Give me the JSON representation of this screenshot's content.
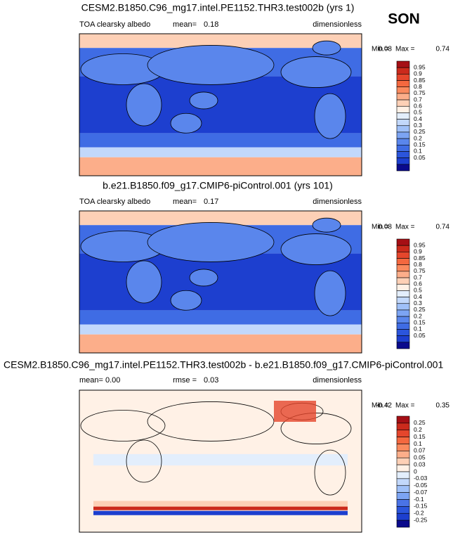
{
  "season": "SON",
  "panels": [
    {
      "title": "CESM2.B1850.C96_mg17.intel.PE1152.THR3.test002b (yrs 1)",
      "left": "TOA clearsky albedo",
      "stat_label": "mean=",
      "stat_value": "0.18",
      "units": "dimensionless",
      "min_label": "Min =",
      "min": "0.08",
      "max_label": "Max =",
      "max": "0.74",
      "colorbar": {
        "labels": [
          0.95,
          0.9,
          0.85,
          0.8,
          0.75,
          0.7,
          0.6,
          0.5,
          0.4,
          0.3,
          0.25,
          0.2,
          0.15,
          0.1,
          0.05
        ],
        "colors": [
          "#a50f15",
          "#cb2a1c",
          "#e5462c",
          "#f4683f",
          "#fa8a5e",
          "#fcae8a",
          "#fdd0b6",
          "#fff1e6",
          "#e3eefc",
          "#c2d8fb",
          "#9fc0f8",
          "#7ca4f3",
          "#5a86ec",
          "#3f6ce4",
          "#2b55dc",
          "#1d3fcf",
          "#0a0a8c"
        ]
      }
    },
    {
      "title": "b.e21.B1850.f09_g17.CMIP6-piControl.001 (yrs 101)",
      "left": "TOA clearsky albedo",
      "stat_label": "mean=",
      "stat_value": "0.17",
      "units": "dimensionless",
      "min_label": "Min =",
      "min": "0.08",
      "max_label": "Max =",
      "max": "0.74",
      "colorbar": {
        "labels": [
          0.95,
          0.9,
          0.85,
          0.8,
          0.75,
          0.7,
          0.6,
          0.5,
          0.4,
          0.3,
          0.25,
          0.2,
          0.15,
          0.1,
          0.05
        ],
        "colors": [
          "#a50f15",
          "#cb2a1c",
          "#e5462c",
          "#f4683f",
          "#fa8a5e",
          "#fcae8a",
          "#fdd0b6",
          "#fff1e6",
          "#e3eefc",
          "#c2d8fb",
          "#9fc0f8",
          "#7ca4f3",
          "#5a86ec",
          "#3f6ce4",
          "#2b55dc",
          "#1d3fcf",
          "#0a0a8c"
        ]
      }
    },
    {
      "title": "CESM2.B1850.C96_mg17.intel.PE1152.THR3.test002b - b.e21.B1850.f09_g17.CMIP6-piControl.001",
      "left": "mean=  0.00",
      "stat_label": "rmse =",
      "stat_value": "0.03",
      "units": "dimensionless",
      "min_label": "Min =",
      "min": "-0.42",
      "max_label": "Max =",
      "max": "0.35",
      "colorbar": {
        "labels": [
          0.25,
          0.2,
          0.15,
          0.1,
          0.07,
          0.05,
          0.03,
          0,
          -0.03,
          -0.05,
          -0.07,
          -0.1,
          -0.15,
          -0.2,
          -0.25
        ],
        "colors": [
          "#a50f15",
          "#cb2a1c",
          "#e5462c",
          "#f4683f",
          "#fa8a5e",
          "#fcae8a",
          "#fdd0b6",
          "#fff1e6",
          "#e3eefc",
          "#c2d8fb",
          "#9fc0f8",
          "#7ca4f3",
          "#4a73e6",
          "#2b55dc",
          "#1d3fcf",
          "#0a0a8c"
        ]
      }
    }
  ]
}
